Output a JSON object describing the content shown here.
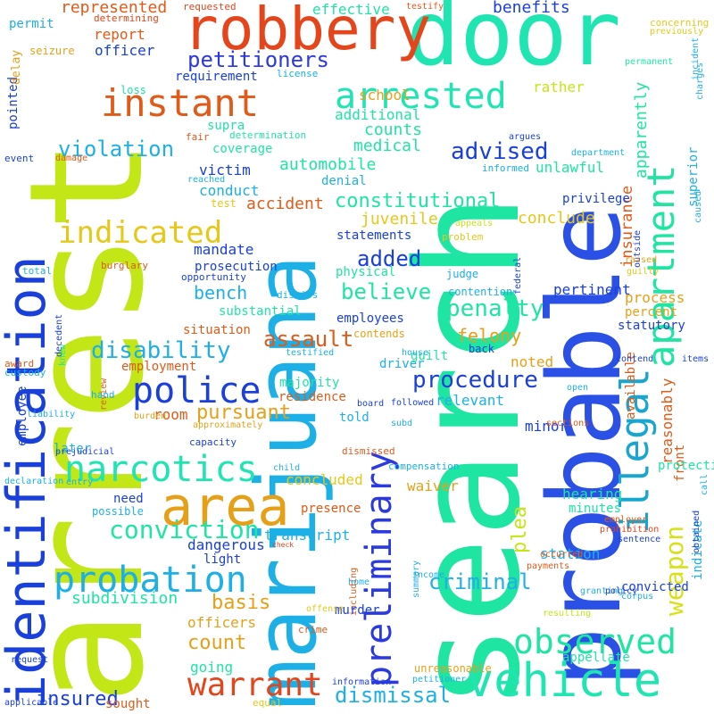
{
  "words": [
    {
      "text": "arrest",
      "color": "#c2e616"
    },
    {
      "text": "search",
      "color": "#1ee5a2"
    },
    {
      "text": "probable",
      "color": "#2a50e6"
    },
    {
      "text": "marijuana",
      "color": "#1cb0e6"
    },
    {
      "text": "identification",
      "color": "#1a40dc"
    },
    {
      "text": "door",
      "color": "#1ee5b2"
    },
    {
      "text": "robbery",
      "color": "#e4451a"
    },
    {
      "text": "area",
      "color": "#e6a018"
    },
    {
      "text": "preliminary",
      "color": "#2a3ae0"
    },
    {
      "text": "vehicle",
      "color": "#1ee5b2"
    },
    {
      "text": "illegal",
      "color": "#18a6d0"
    },
    {
      "text": "apartment",
      "color": "#1ee5a2"
    },
    {
      "text": "weapon",
      "color": "#d8e018"
    },
    {
      "text": "instant",
      "color": "#e05a18"
    },
    {
      "text": "arrested",
      "color": "#1ee5b2"
    },
    {
      "text": "police",
      "color": "#1a40dc"
    },
    {
      "text": "narcotics",
      "color": "#1ee5b2"
    },
    {
      "text": "probation",
      "color": "#1cb0e6"
    },
    {
      "text": "observed",
      "color": "#1ee5a2"
    },
    {
      "text": "warrant",
      "color": "#e4451a"
    },
    {
      "text": "indicated",
      "color": "#e6c818"
    },
    {
      "text": "conviction",
      "color": "#1ee5a2"
    },
    {
      "text": "petitioners",
      "color": "#2a3ae0"
    },
    {
      "text": "disability",
      "color": "#1cb0e6"
    },
    {
      "text": "constitutional",
      "color": "#1ee5a2"
    },
    {
      "text": "advised",
      "color": "#1a40dc"
    },
    {
      "text": "violation",
      "color": "#1cb0e6"
    },
    {
      "text": "penalty",
      "color": "#1ee5a2"
    },
    {
      "text": "procedure",
      "color": "#1a40dc"
    },
    {
      "text": "believe",
      "color": "#1ee5a2"
    },
    {
      "text": "criminal",
      "color": "#1cb0e6"
    },
    {
      "text": "dismissal",
      "color": "#1cb0e6"
    },
    {
      "text": "insured",
      "color": "#1a40dc"
    },
    {
      "text": "added",
      "color": "#1a40dc"
    },
    {
      "text": "assault",
      "color": "#e05a18"
    },
    {
      "text": "pursuant",
      "color": "#e6a018"
    },
    {
      "text": "bench",
      "color": "#1cb0e6"
    },
    {
      "text": "basis",
      "color": "#e6a018"
    },
    {
      "text": "count",
      "color": "#e6a018"
    },
    {
      "text": "subdivision",
      "color": "#1ee5a2"
    },
    {
      "text": "plea",
      "color": "#c2e616"
    },
    {
      "text": "felony",
      "color": "#e6a018"
    },
    {
      "text": "medical",
      "color": "#1ee5a2"
    },
    {
      "text": "counts",
      "color": "#1ee5a2"
    },
    {
      "text": "automobile",
      "color": "#1ee5a2"
    },
    {
      "text": "mandate",
      "color": "#1a40dc"
    },
    {
      "text": "accident",
      "color": "#e05a18"
    },
    {
      "text": "juvenile",
      "color": "#e6c818"
    },
    {
      "text": "conclude",
      "color": "#e6c818"
    },
    {
      "text": "insurance",
      "color": "#e05a18"
    },
    {
      "text": "benefits",
      "color": "#1a40dc"
    },
    {
      "text": "effective",
      "color": "#1ee5a2"
    },
    {
      "text": "represented",
      "color": "#e05a18"
    },
    {
      "text": "apparently",
      "color": "#1ee5a2"
    },
    {
      "text": "report",
      "color": "#e05a18"
    },
    {
      "text": "officer",
      "color": "#1a40dc"
    },
    {
      "text": "school",
      "color": "#e6a018"
    },
    {
      "text": "rather",
      "color": "#c2e616"
    },
    {
      "text": "requirement",
      "color": "#1a40dc"
    },
    {
      "text": "additional",
      "color": "#1ee5a2"
    },
    {
      "text": "unlawful",
      "color": "#1ee5a2"
    },
    {
      "text": "transcript",
      "color": "#1cb0e6"
    },
    {
      "text": "coverage",
      "color": "#1ee5a2"
    },
    {
      "text": "victim",
      "color": "#1a40dc"
    },
    {
      "text": "conduct",
      "color": "#1cb0e6"
    },
    {
      "text": "denial",
      "color": "#1cb0e6"
    },
    {
      "text": "privilege",
      "color": "#1a40dc"
    },
    {
      "text": "process",
      "color": "#e6a018"
    },
    {
      "text": "pertinent",
      "color": "#1a40dc"
    },
    {
      "text": "percent",
      "color": "#e6a018"
    },
    {
      "text": "statutory",
      "color": "#1a40dc"
    },
    {
      "text": "reasonably",
      "color": "#e05a18"
    },
    {
      "text": "available",
      "color": "#e05a18"
    },
    {
      "text": "superior",
      "color": "#1cb0e6"
    },
    {
      "text": "situation",
      "color": "#e05a18"
    },
    {
      "text": "employment",
      "color": "#e05a18"
    },
    {
      "text": "prosecution",
      "color": "#1a40dc"
    },
    {
      "text": "substantial",
      "color": "#1ee5a2"
    },
    {
      "text": "physical",
      "color": "#1ee5a2"
    },
    {
      "text": "statements",
      "color": "#1a40dc"
    },
    {
      "text": "employees",
      "color": "#1a40dc"
    },
    {
      "text": "driver",
      "color": "#1cb0e6"
    },
    {
      "text": "noted",
      "color": "#e6a018"
    },
    {
      "text": "guilt",
      "color": "#1ee5a2"
    },
    {
      "text": "relevant",
      "color": "#1cb0e6"
    },
    {
      "text": "minor",
      "color": "#1a40dc"
    },
    {
      "text": "majority",
      "color": "#1ee5a2"
    },
    {
      "text": "residence",
      "color": "#e05a18"
    },
    {
      "text": "room",
      "color": "#e05a18"
    },
    {
      "text": "told",
      "color": "#1cb0e6"
    },
    {
      "text": "later",
      "color": "#1cb0e6"
    },
    {
      "text": "employee",
      "color": "#1a40dc"
    },
    {
      "text": "concluded",
      "color": "#e6c818"
    },
    {
      "text": "waiver",
      "color": "#e6a018"
    },
    {
      "text": "hearing",
      "color": "#1ee5a2"
    },
    {
      "text": "minutes",
      "color": "#1ee5a2"
    },
    {
      "text": "protection",
      "color": "#1ee5a2"
    },
    {
      "text": "station",
      "color": "#1cb0e6"
    },
    {
      "text": "presence",
      "color": "#e05a18"
    },
    {
      "text": "dangerous",
      "color": "#1a40dc"
    },
    {
      "text": "light",
      "color": "#1a40dc"
    },
    {
      "text": "officers",
      "color": "#e6a018"
    },
    {
      "text": "going",
      "color": "#1ee5a2"
    },
    {
      "text": "murder",
      "color": "#1a40dc"
    },
    {
      "text": "convicted",
      "color": "#1a40dc"
    },
    {
      "text": "appellate",
      "color": "#1ee5a2"
    },
    {
      "text": "indicate",
      "color": "#1cb0e6"
    },
    {
      "text": "front",
      "color": "#e05a18"
    },
    {
      "text": "need",
      "color": "#1a40dc"
    },
    {
      "text": "possible",
      "color": "#1cb0e6"
    },
    {
      "text": "pointed",
      "color": "#1a40dc"
    },
    {
      "text": "permit",
      "color": "#1cb0e6"
    },
    {
      "text": "loss",
      "color": "#1ee5a2"
    },
    {
      "text": "delay",
      "color": "#e6a018"
    },
    {
      "text": "seizure",
      "color": "#e6a018"
    },
    {
      "text": "determining",
      "color": "#e4451a"
    },
    {
      "text": "requested",
      "color": "#e4451a"
    },
    {
      "text": "concerning",
      "color": "#e6c818"
    },
    {
      "text": "previously",
      "color": "#e6c818"
    },
    {
      "text": "supra",
      "color": "#1ee5a2"
    },
    {
      "text": "contention",
      "color": "#1cb0e6"
    },
    {
      "text": "contends",
      "color": "#e6a018"
    },
    {
      "text": "back",
      "color": "#1a40dc"
    },
    {
      "text": "house",
      "color": "#1cb0e6"
    },
    {
      "text": "license",
      "color": "#1cb0e6"
    },
    {
      "text": "judge",
      "color": "#1cb0e6"
    },
    {
      "text": "problem",
      "color": "#e6c818"
    },
    {
      "text": "informed",
      "color": "#1cb0e6"
    },
    {
      "text": "argues",
      "color": "#1a40dc"
    },
    {
      "text": "department",
      "color": "#1cb0e6"
    },
    {
      "text": "determination",
      "color": "#1ee5a2"
    },
    {
      "text": "fair",
      "color": "#e05a18"
    },
    {
      "text": "test",
      "color": "#e6c818"
    },
    {
      "text": "reached",
      "color": "#1cb0e6"
    },
    {
      "text": "event",
      "color": "#1a40dc"
    },
    {
      "text": "damage",
      "color": "#e05a18"
    },
    {
      "text": "opportunity",
      "color": "#1a40dc"
    },
    {
      "text": "dismiss",
      "color": "#1cb0e6"
    },
    {
      "text": "burglary",
      "color": "#e05a18"
    },
    {
      "text": "total",
      "color": "#1cb0e6"
    },
    {
      "text": "award",
      "color": "#e05a18"
    },
    {
      "text": "custody",
      "color": "#1cb0e6"
    },
    {
      "text": "decedent",
      "color": "#1a40dc"
    },
    {
      "text": "testified",
      "color": "#1cb0e6"
    },
    {
      "text": "knew",
      "color": "#1ee5a2"
    },
    {
      "text": "hand",
      "color": "#1cb0e6"
    },
    {
      "text": "liability",
      "color": "#1cb0e6"
    },
    {
      "text": "burden",
      "color": "#e6a018"
    },
    {
      "text": "approximately",
      "color": "#e6a018"
    },
    {
      "text": "review",
      "color": "#e05a18"
    },
    {
      "text": "capacity",
      "color": "#1a40dc"
    },
    {
      "text": "followed",
      "color": "#1a40dc"
    },
    {
      "text": "subd",
      "color": "#1cb0e6"
    },
    {
      "text": "board",
      "color": "#1a40dc"
    },
    {
      "text": "dismissed",
      "color": "#e05a18"
    },
    {
      "text": "prejudicial",
      "color": "#1a40dc"
    },
    {
      "text": "declaration",
      "color": "#1cb0e6"
    },
    {
      "text": "entry",
      "color": "#1cb0e6"
    },
    {
      "text": "child",
      "color": "#1cb0e6"
    },
    {
      "text": "compensation",
      "color": "#1cb0e6"
    },
    {
      "text": "check",
      "color": "#e4451a"
    },
    {
      "text": "home",
      "color": "#1cb0e6"
    },
    {
      "text": "offense",
      "color": "#e6c818"
    },
    {
      "text": "income",
      "color": "#1cb0e6"
    },
    {
      "text": "including",
      "color": "#e05a18"
    },
    {
      "text": "information",
      "color": "#1a40dc"
    },
    {
      "text": "summary",
      "color": "#1cb0e6"
    },
    {
      "text": "unreasonable",
      "color": "#e6a018"
    },
    {
      "text": "petitioner",
      "color": "#1cb0e6"
    },
    {
      "text": "sought",
      "color": "#e05a18"
    },
    {
      "text": "equal",
      "color": "#e6c818"
    },
    {
      "text": "applicable",
      "color": "#1a40dc"
    },
    {
      "text": "request",
      "color": "#1a40dc"
    },
    {
      "text": "crime",
      "color": "#e05a18"
    },
    {
      "text": "sections",
      "color": "#e05a18"
    },
    {
      "text": "employer",
      "color": "#e05a18"
    },
    {
      "text": "prohibition",
      "color": "#e4451a"
    },
    {
      "text": "occurred",
      "color": "#e05a18"
    },
    {
      "text": "payments",
      "color": "#e05a18"
    },
    {
      "text": "granting",
      "color": "#1cb0e6"
    },
    {
      "text": "sentence",
      "color": "#1a40dc"
    },
    {
      "text": "policy",
      "color": "#1a40dc"
    },
    {
      "text": "corpus",
      "color": "#1cb0e6"
    },
    {
      "text": "resulting",
      "color": "#c2e616"
    },
    {
      "text": "obtained",
      "color": "#1a40dc"
    },
    {
      "text": "call",
      "color": "#1cb0e6"
    },
    {
      "text": "incident",
      "color": "#1cb0e6"
    },
    {
      "text": "open",
      "color": "#1cb0e6"
    },
    {
      "text": "contend",
      "color": "#1a40dc"
    },
    {
      "text": "items",
      "color": "#1a40dc"
    },
    {
      "text": "caused",
      "color": "#1cb0e6"
    },
    {
      "text": "guilty",
      "color": "#e6c818"
    },
    {
      "text": "raised",
      "color": "#e6a018"
    },
    {
      "text": "outside",
      "color": "#1a40dc"
    },
    {
      "text": "federal",
      "color": "#1a40dc"
    },
    {
      "text": "appeals",
      "color": "#c2e616"
    },
    {
      "text": "permanent",
      "color": "#1ee5a2"
    },
    {
      "text": "charges",
      "color": "#1cb0e6"
    },
    {
      "text": "testify",
      "color": "#e05a18"
    }
  ]
}
